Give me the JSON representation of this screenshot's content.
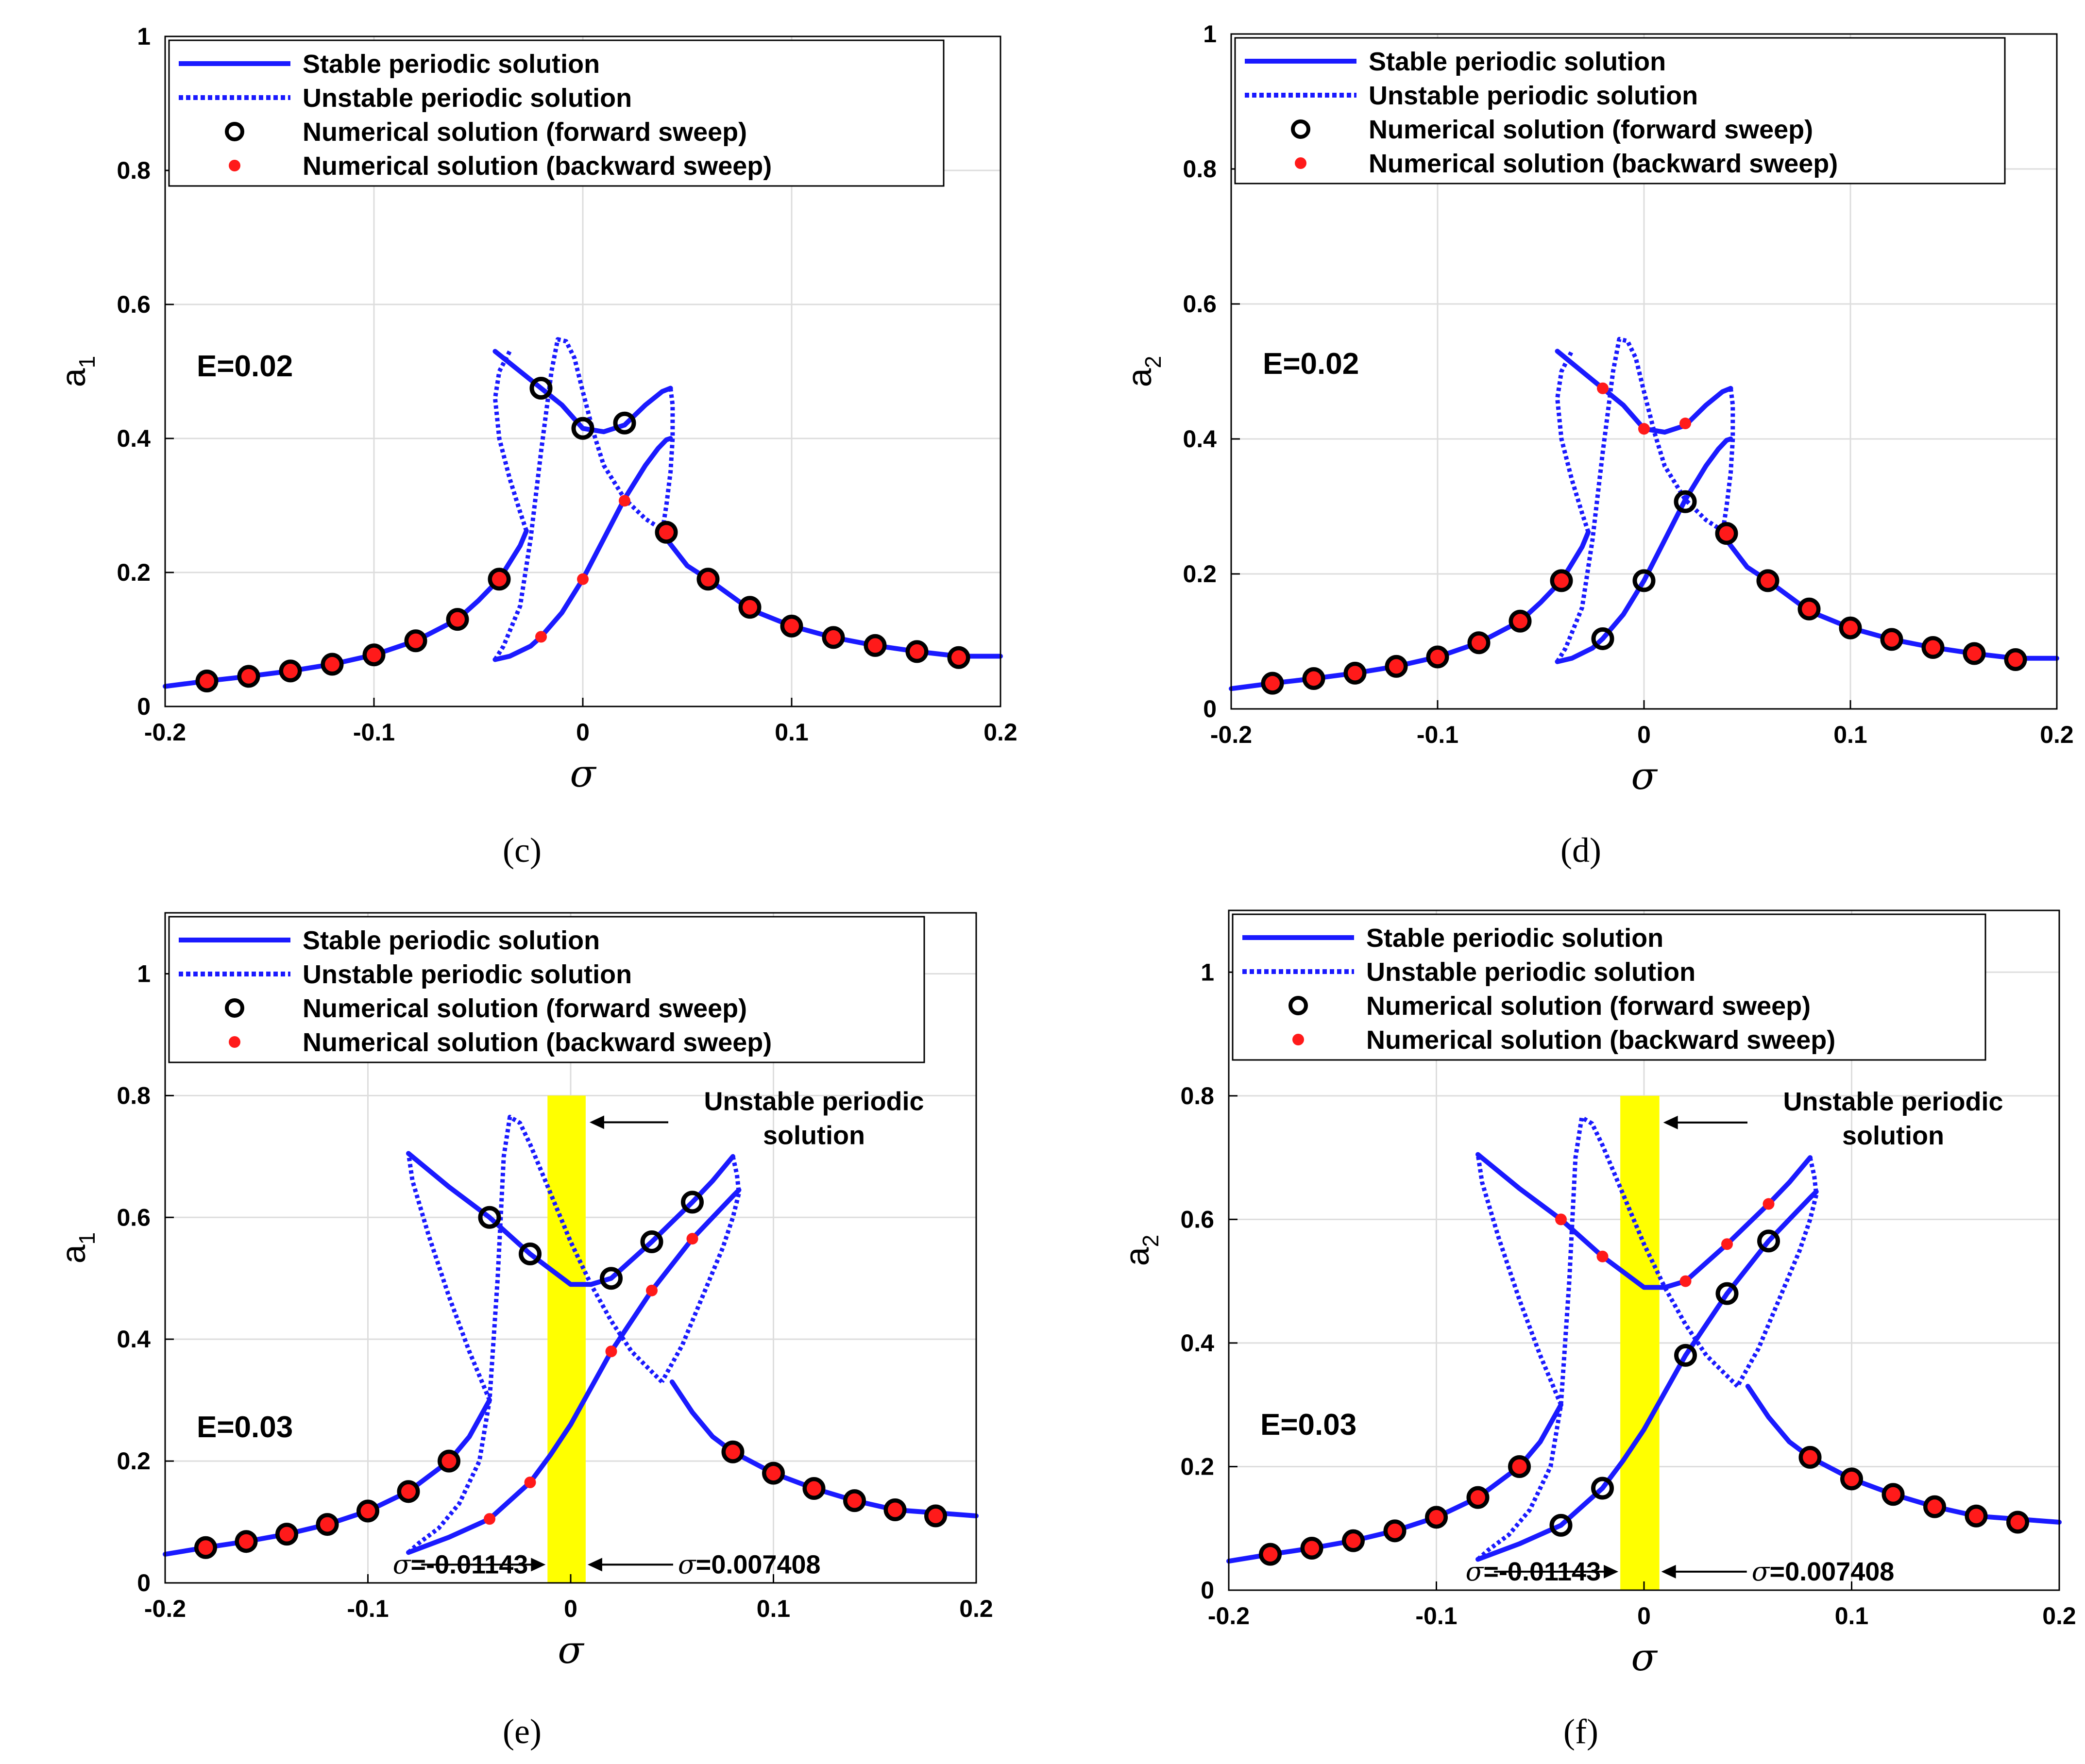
{
  "chart_data": [
    {
      "id": "c",
      "panel_label": "(c)",
      "type": "line",
      "ylabel_main": "a",
      "ylabel_sub": "1",
      "xlabel": "σ",
      "xlim": [
        -0.2,
        0.2
      ],
      "ylim": [
        0,
        1
      ],
      "xticks": [
        "-0.2",
        "-0.1",
        "0",
        "0.1",
        "0.2"
      ],
      "yticks": [
        "0",
        "0.2",
        "0.4",
        "0.6",
        "0.8",
        "1"
      ],
      "grid": true,
      "legend_position": "top-left",
      "annotation": "E=0.02",
      "series_sweep_styles": {
        "black": "forward",
        "red": "backward"
      },
      "stable_lower": {
        "x": [
          -0.2,
          -0.18,
          -0.16,
          -0.14,
          -0.12,
          -0.1,
          -0.08,
          -0.06,
          -0.05,
          -0.04,
          -0.035,
          -0.03,
          -0.027
        ],
        "y": [
          0.03,
          0.038,
          0.045,
          0.053,
          0.063,
          0.077,
          0.098,
          0.13,
          0.158,
          0.19,
          0.215,
          0.24,
          0.262
        ]
      },
      "unstable_lower_left": {
        "x": [
          -0.027,
          -0.03,
          -0.035,
          -0.04,
          -0.042,
          -0.04,
          -0.035
        ],
        "y": [
          0.262,
          0.29,
          0.34,
          0.4,
          0.46,
          0.5,
          0.53
        ]
      },
      "stable_upper": {
        "x": [
          -0.042,
          -0.03,
          -0.02,
          -0.01,
          0,
          0.01,
          0.02,
          0.03,
          0.038,
          0.042
        ],
        "y": [
          0.53,
          0.5,
          0.475,
          0.45,
          0.415,
          0.41,
          0.42,
          0.45,
          0.47,
          0.475
        ]
      },
      "unstable_peak": {
        "x": [
          -0.042,
          -0.038,
          -0.03,
          -0.025,
          -0.02,
          -0.015,
          -0.012,
          -0.008,
          -0.004,
          0,
          0.005,
          0.01,
          0.02,
          0.03,
          0.04
        ],
        "y": [
          0.07,
          0.09,
          0.15,
          0.25,
          0.38,
          0.5,
          0.548,
          0.545,
          0.52,
          0.47,
          0.41,
          0.36,
          0.31,
          0.28,
          0.26
        ]
      },
      "unstable_right": {
        "x": [
          0.042,
          0.043,
          0.043,
          0.042,
          0.04,
          0.038
        ],
        "y": [
          0.475,
          0.45,
          0.4,
          0.35,
          0.3,
          0.26
        ]
      },
      "stable_mid": {
        "x": [
          -0.042,
          -0.035,
          -0.025,
          -0.02,
          -0.01,
          0,
          0.01,
          0.02,
          0.03,
          0.036,
          0.04,
          0.042
        ],
        "y": [
          0.07,
          0.075,
          0.09,
          0.104,
          0.14,
          0.19,
          0.25,
          0.31,
          0.36,
          0.385,
          0.398,
          0.4
        ]
      },
      "stable_right": {
        "x": [
          0.038,
          0.04,
          0.05,
          0.06,
          0.08,
          0.1,
          0.12,
          0.14,
          0.16,
          0.18,
          0.2
        ],
        "y": [
          0.26,
          0.25,
          0.21,
          0.19,
          0.145,
          0.12,
          0.103,
          0.091,
          0.082,
          0.075,
          0.075
        ]
      },
      "numeric_both": {
        "x": [
          -0.18,
          -0.16,
          -0.14,
          -0.12,
          -0.1,
          -0.08,
          -0.06,
          -0.04,
          0.04,
          0.06,
          0.08,
          0.1,
          0.12,
          0.14,
          0.16,
          0.18
        ],
        "y": [
          0.038,
          0.045,
          0.053,
          0.063,
          0.077,
          0.098,
          0.13,
          0.19,
          0.26,
          0.19,
          0.148,
          0.12,
          0.103,
          0.091,
          0.082,
          0.073
        ]
      },
      "forward_only": {
        "x": [
          -0.02,
          0,
          0.02
        ],
        "y": [
          0.475,
          0.415,
          0.423
        ]
      },
      "backward_only": {
        "x": [
          -0.02,
          0,
          0.02
        ],
        "y": [
          0.104,
          0.19,
          0.307
        ]
      }
    },
    {
      "id": "d",
      "panel_label": "(d)",
      "type": "line",
      "ylabel_main": "a",
      "ylabel_sub": "2",
      "xlabel": "σ",
      "xlim": [
        -0.2,
        0.2
      ],
      "ylim": [
        0,
        1
      ],
      "xticks": [
        "-0.2",
        "-0.1",
        "0",
        "0.1",
        "0.2"
      ],
      "yticks": [
        "0",
        "0.2",
        "0.4",
        "0.6",
        "0.8",
        "1"
      ],
      "grid": true,
      "legend_position": "top-left",
      "annotation": "E=0.02",
      "series_sweep_styles": {
        "black": "forward",
        "red": "backward"
      },
      "stable_lower": {
        "x": [
          -0.2,
          -0.18,
          -0.16,
          -0.14,
          -0.12,
          -0.1,
          -0.08,
          -0.06,
          -0.05,
          -0.04,
          -0.035,
          -0.03,
          -0.027
        ],
        "y": [
          0.03,
          0.038,
          0.045,
          0.053,
          0.063,
          0.077,
          0.098,
          0.13,
          0.158,
          0.19,
          0.215,
          0.24,
          0.262
        ]
      },
      "unstable_lower_left": {
        "x": [
          -0.027,
          -0.03,
          -0.035,
          -0.04,
          -0.042,
          -0.04,
          -0.035
        ],
        "y": [
          0.262,
          0.29,
          0.34,
          0.4,
          0.46,
          0.5,
          0.53
        ]
      },
      "stable_upper": {
        "x": [
          -0.042,
          -0.03,
          -0.02,
          -0.01,
          0,
          0.01,
          0.02,
          0.03,
          0.038,
          0.042
        ],
        "y": [
          0.53,
          0.5,
          0.475,
          0.45,
          0.415,
          0.41,
          0.42,
          0.45,
          0.47,
          0.475
        ]
      },
      "unstable_peak": {
        "x": [
          -0.042,
          -0.038,
          -0.03,
          -0.025,
          -0.02,
          -0.015,
          -0.012,
          -0.008,
          -0.004,
          0,
          0.005,
          0.01,
          0.02,
          0.03,
          0.04
        ],
        "y": [
          0.07,
          0.09,
          0.15,
          0.25,
          0.38,
          0.5,
          0.548,
          0.545,
          0.52,
          0.47,
          0.41,
          0.36,
          0.31,
          0.28,
          0.26
        ]
      },
      "unstable_right": {
        "x": [
          0.042,
          0.043,
          0.043,
          0.042,
          0.04,
          0.038
        ],
        "y": [
          0.475,
          0.45,
          0.4,
          0.35,
          0.3,
          0.26
        ]
      },
      "stable_mid": {
        "x": [
          -0.042,
          -0.035,
          -0.025,
          -0.02,
          -0.01,
          0,
          0.01,
          0.02,
          0.03,
          0.036,
          0.04,
          0.042
        ],
        "y": [
          0.07,
          0.075,
          0.09,
          0.104,
          0.14,
          0.19,
          0.25,
          0.31,
          0.36,
          0.385,
          0.398,
          0.4
        ]
      },
      "stable_right": {
        "x": [
          0.038,
          0.04,
          0.05,
          0.06,
          0.08,
          0.1,
          0.12,
          0.14,
          0.16,
          0.18,
          0.2
        ],
        "y": [
          0.26,
          0.25,
          0.21,
          0.19,
          0.145,
          0.12,
          0.103,
          0.091,
          0.082,
          0.075,
          0.075
        ]
      },
      "numeric_both": {
        "x": [
          -0.18,
          -0.16,
          -0.14,
          -0.12,
          -0.1,
          -0.08,
          -0.06,
          -0.04,
          0.04,
          0.06,
          0.08,
          0.1,
          0.12,
          0.14,
          0.16,
          0.18
        ],
        "y": [
          0.038,
          0.045,
          0.053,
          0.063,
          0.077,
          0.098,
          0.13,
          0.19,
          0.26,
          0.19,
          0.148,
          0.12,
          0.103,
          0.091,
          0.082,
          0.073
        ]
      },
      "forward_only": {
        "x": [
          -0.02,
          0,
          0.02
        ],
        "y": [
          0.104,
          0.19,
          0.307
        ]
      },
      "backward_only": {
        "x": [
          -0.02,
          0,
          0.02
        ],
        "y": [
          0.475,
          0.415,
          0.423
        ]
      }
    },
    {
      "id": "e",
      "panel_label": "(e)",
      "type": "line",
      "ylabel_main": "a",
      "ylabel_sub": "1",
      "xlabel": "σ",
      "xlim": [
        -0.2,
        0.2
      ],
      "ylim": [
        0,
        1.1
      ],
      "xticks": [
        "-0.2",
        "-0.1",
        "0",
        "0.1",
        "0.2"
      ],
      "yticks": [
        "0",
        "0.2",
        "0.4",
        "0.6",
        "0.8",
        "1"
      ],
      "grid": true,
      "legend_position": "top-left",
      "annotation": "E=0.03",
      "band": {
        "x0": -0.01143,
        "x1": 0.007408,
        "y0": 0,
        "y1": 0.8,
        "color": "#ffff00"
      },
      "band_note_lines": [
        "Unstable periodic",
        "solution"
      ],
      "band_left_label": "=-0.01143",
      "band_right_label": "=0.007408",
      "series_sweep_styles": {
        "black": "forward",
        "red": "backward"
      },
      "stable_lower": {
        "x": [
          -0.2,
          -0.18,
          -0.16,
          -0.14,
          -0.12,
          -0.1,
          -0.08,
          -0.06,
          -0.05,
          -0.045,
          -0.04
        ],
        "y": [
          0.047,
          0.058,
          0.068,
          0.08,
          0.096,
          0.118,
          0.15,
          0.2,
          0.24,
          0.27,
          0.3
        ]
      },
      "unstable_left": {
        "x": [
          -0.04,
          -0.05,
          -0.06,
          -0.07,
          -0.078,
          -0.08
        ],
        "y": [
          0.3,
          0.38,
          0.47,
          0.57,
          0.66,
          0.705
        ]
      },
      "stable_upper": {
        "x": [
          -0.08,
          -0.06,
          -0.04,
          -0.02,
          0,
          0.01,
          0.02,
          0.04,
          0.06,
          0.07,
          0.08
        ],
        "y": [
          0.705,
          0.65,
          0.6,
          0.54,
          0.49,
          0.49,
          0.5,
          0.56,
          0.625,
          0.66,
          0.7
        ]
      },
      "unstable_peak": {
        "x": [
          -0.08,
          -0.075,
          -0.065,
          -0.055,
          -0.045,
          -0.04,
          -0.036,
          -0.033,
          -0.03,
          -0.025,
          -0.02,
          -0.01,
          0,
          0.01,
          0.02,
          0.03,
          0.045
        ],
        "y": [
          0.05,
          0.065,
          0.09,
          0.13,
          0.2,
          0.3,
          0.5,
          0.7,
          0.765,
          0.755,
          0.72,
          0.64,
          0.56,
          0.49,
          0.43,
          0.38,
          0.33
        ]
      },
      "unstable_right": {
        "x": [
          0.08,
          0.082,
          0.083,
          0.08,
          0.075,
          0.065,
          0.055,
          0.045
        ],
        "y": [
          0.7,
          0.67,
          0.64,
          0.6,
          0.55,
          0.47,
          0.39,
          0.33
        ]
      },
      "stable_mid": {
        "x": [
          -0.08,
          -0.06,
          -0.04,
          -0.02,
          -0.01,
          0,
          0.01,
          0.02,
          0.04,
          0.06,
          0.08,
          0.083
        ],
        "y": [
          0.05,
          0.075,
          0.105,
          0.165,
          0.21,
          0.26,
          0.32,
          0.38,
          0.48,
          0.565,
          0.635,
          0.645
        ]
      },
      "stable_right": {
        "x": [
          0.05,
          0.06,
          0.07,
          0.08,
          0.1,
          0.12,
          0.14,
          0.16,
          0.18,
          0.2
        ],
        "y": [
          0.33,
          0.28,
          0.24,
          0.215,
          0.18,
          0.155,
          0.135,
          0.12,
          0.115,
          0.11
        ]
      },
      "numeric_both": {
        "x": [
          -0.18,
          -0.16,
          -0.14,
          -0.12,
          -0.1,
          -0.08,
          -0.06,
          0.08,
          0.1,
          0.12,
          0.14,
          0.16,
          0.18
        ],
        "y": [
          0.058,
          0.068,
          0.08,
          0.096,
          0.118,
          0.15,
          0.2,
          0.215,
          0.18,
          0.155,
          0.135,
          0.12,
          0.11
        ]
      },
      "forward_only": {
        "x": [
          -0.04,
          -0.02,
          0.02,
          0.04,
          0.06
        ],
        "y": [
          0.6,
          0.54,
          0.5,
          0.56,
          0.625
        ]
      },
      "backward_only": {
        "x": [
          -0.04,
          -0.02,
          0.02,
          0.04,
          0.06
        ],
        "y": [
          0.105,
          0.165,
          0.38,
          0.48,
          0.565
        ]
      }
    },
    {
      "id": "f",
      "panel_label": "(f)",
      "type": "line",
      "ylabel_main": "a",
      "ylabel_sub": "2",
      "xlabel": "σ",
      "xlim": [
        -0.2,
        0.2
      ],
      "ylim": [
        0,
        1.1
      ],
      "xticks": [
        "-0.2",
        "-0.1",
        "0",
        "0.1",
        "0.2"
      ],
      "yticks": [
        "0",
        "0.2",
        "0.4",
        "0.6",
        "0.8",
        "1"
      ],
      "grid": true,
      "legend_position": "top-left",
      "annotation": "E=0.03",
      "band": {
        "x0": -0.01143,
        "x1": 0.007408,
        "y0": 0,
        "y1": 0.8,
        "color": "#ffff00"
      },
      "band_note_lines": [
        "Unstable periodic",
        "solution"
      ],
      "band_left_label": "=-0.01143",
      "band_right_label": "=0.007408",
      "series_sweep_styles": {
        "black": "forward",
        "red": "backward"
      },
      "stable_lower": {
        "x": [
          -0.2,
          -0.18,
          -0.16,
          -0.14,
          -0.12,
          -0.1,
          -0.08,
          -0.06,
          -0.05,
          -0.045,
          -0.04
        ],
        "y": [
          0.047,
          0.058,
          0.068,
          0.08,
          0.096,
          0.118,
          0.15,
          0.2,
          0.24,
          0.27,
          0.3
        ]
      },
      "unstable_left": {
        "x": [
          -0.04,
          -0.05,
          -0.06,
          -0.07,
          -0.078,
          -0.08
        ],
        "y": [
          0.3,
          0.38,
          0.47,
          0.57,
          0.66,
          0.705
        ]
      },
      "stable_upper": {
        "x": [
          -0.08,
          -0.06,
          -0.04,
          -0.02,
          0,
          0.01,
          0.02,
          0.04,
          0.06,
          0.07,
          0.08
        ],
        "y": [
          0.705,
          0.65,
          0.6,
          0.54,
          0.49,
          0.49,
          0.5,
          0.56,
          0.625,
          0.66,
          0.7
        ]
      },
      "unstable_peak": {
        "x": [
          -0.08,
          -0.075,
          -0.065,
          -0.055,
          -0.045,
          -0.04,
          -0.036,
          -0.033,
          -0.03,
          -0.025,
          -0.02,
          -0.01,
          0,
          0.01,
          0.02,
          0.03,
          0.045
        ],
        "y": [
          0.05,
          0.065,
          0.09,
          0.13,
          0.2,
          0.3,
          0.5,
          0.7,
          0.765,
          0.755,
          0.72,
          0.64,
          0.56,
          0.49,
          0.43,
          0.38,
          0.33
        ]
      },
      "unstable_right": {
        "x": [
          0.08,
          0.082,
          0.083,
          0.08,
          0.075,
          0.065,
          0.055,
          0.045
        ],
        "y": [
          0.7,
          0.67,
          0.64,
          0.6,
          0.55,
          0.47,
          0.39,
          0.33
        ]
      },
      "stable_mid": {
        "x": [
          -0.08,
          -0.06,
          -0.04,
          -0.02,
          -0.01,
          0,
          0.01,
          0.02,
          0.04,
          0.06,
          0.08,
          0.083
        ],
        "y": [
          0.05,
          0.075,
          0.105,
          0.165,
          0.21,
          0.26,
          0.32,
          0.38,
          0.48,
          0.565,
          0.635,
          0.645
        ]
      },
      "stable_right": {
        "x": [
          0.05,
          0.06,
          0.07,
          0.08,
          0.1,
          0.12,
          0.14,
          0.16,
          0.18,
          0.2
        ],
        "y": [
          0.33,
          0.28,
          0.24,
          0.215,
          0.18,
          0.155,
          0.135,
          0.12,
          0.115,
          0.11
        ]
      },
      "numeric_both": {
        "x": [
          -0.18,
          -0.16,
          -0.14,
          -0.12,
          -0.1,
          -0.08,
          -0.06,
          0.08,
          0.1,
          0.12,
          0.14,
          0.16,
          0.18
        ],
        "y": [
          0.058,
          0.068,
          0.08,
          0.096,
          0.118,
          0.15,
          0.2,
          0.215,
          0.18,
          0.155,
          0.135,
          0.12,
          0.11
        ]
      },
      "forward_only": {
        "x": [
          -0.04,
          -0.02,
          0.02,
          0.04,
          0.06
        ],
        "y": [
          0.105,
          0.165,
          0.38,
          0.48,
          0.565
        ]
      },
      "backward_only": {
        "x": [
          -0.04,
          -0.02,
          0.02,
          0.04,
          0.06
        ],
        "y": [
          0.6,
          0.54,
          0.5,
          0.56,
          0.625
        ]
      }
    }
  ],
  "legend": {
    "stable": "Stable periodic solution",
    "unstable": "Unstable periodic solution",
    "forward": "Numerical solution (forward sweep)",
    "backward": "Numerical solution (backward sweep)"
  },
  "colors": {
    "line": "#1a1aff",
    "forward_marker": "#000000",
    "backward_marker": "#ff1a1a",
    "band": "#ffff00",
    "grid": "#dddddd"
  }
}
